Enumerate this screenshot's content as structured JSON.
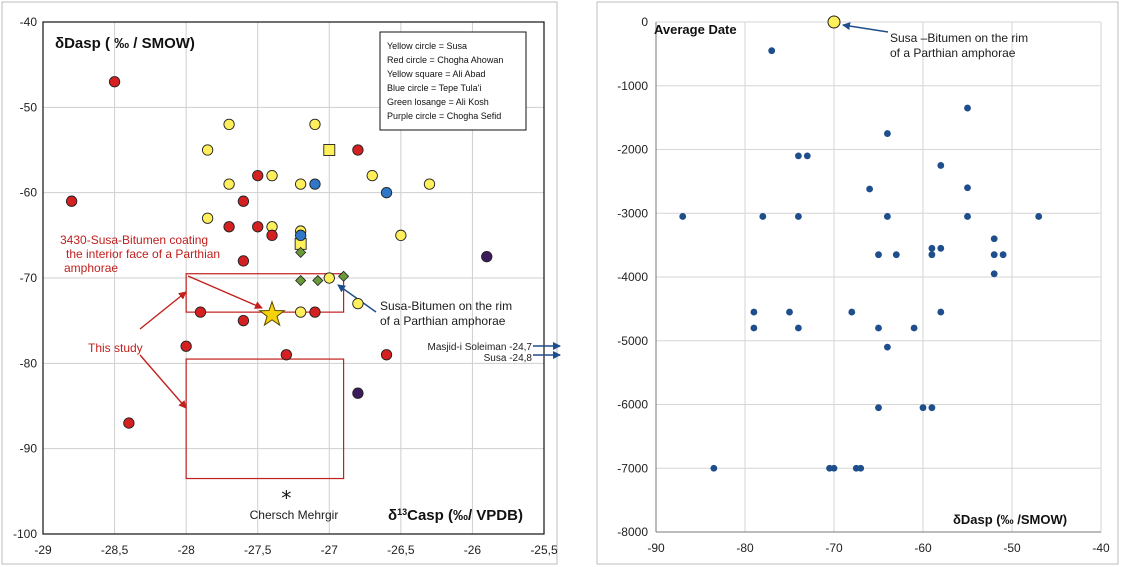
{
  "chart_data": [
    {
      "type": "scatter",
      "title": "δDasp ( ‰ / SMOW)",
      "xlabel": "δ13Casp (‰/ VPDB)",
      "ylabel": "",
      "xlim": [
        -29,
        -25.5
      ],
      "ylim": [
        -100,
        -40
      ],
      "xticks": [
        -29,
        -28.5,
        -28,
        -27.5,
        -27,
        -26.5,
        -26,
        -25.5
      ],
      "xtick_labels": [
        "-29",
        "-28,5",
        "-28",
        "-27,5",
        "-27",
        "-26,5",
        "-26",
        "-25,5"
      ],
      "yticks": [
        -100,
        -90,
        -80,
        -70,
        -60,
        -50,
        -40
      ],
      "grid": true,
      "legend": {
        "placement": "top-right",
        "entries": [
          "Yellow circle = Susa",
          "Red circle = Chogha Ahowan",
          "Yellow square = Ali Abad",
          "Blue circle = Tepe Tula'i",
          "Green losange = Ali Kosh",
          "Purple circle = Chogha Sefid"
        ]
      },
      "series": [
        {
          "key": "susa",
          "shape": "circle",
          "color": "#ffef5a",
          "points": [
            [
              -27.7,
              -52
            ],
            [
              -27.85,
              -55
            ],
            [
              -27.7,
              -59
            ],
            [
              -27.4,
              -58
            ],
            [
              -27.2,
              -59
            ],
            [
              -27.1,
              -52
            ],
            [
              -26.7,
              -58
            ],
            [
              -26.3,
              -59
            ],
            [
              -27.85,
              -63
            ],
            [
              -27.4,
              -64
            ],
            [
              -27.2,
              -64.5
            ],
            [
              -26.5,
              -65
            ],
            [
              -27,
              -70
            ],
            [
              -26.8,
              -73
            ],
            [
              -27.2,
              -74
            ]
          ]
        },
        {
          "key": "chogha_ahowan",
          "shape": "circle",
          "color": "#d42020",
          "points": [
            [
              -28.5,
              -47
            ],
            [
              -28.8,
              -61
            ],
            [
              -27.5,
              -58
            ],
            [
              -26.8,
              -55
            ],
            [
              -27.6,
              -61
            ],
            [
              -27.7,
              -64
            ],
            [
              -27.5,
              -64
            ],
            [
              -27.4,
              -65
            ],
            [
              -27.6,
              -68
            ],
            [
              -27.9,
              -74
            ],
            [
              -27.6,
              -75
            ],
            [
              -27.1,
              -74
            ],
            [
              -28,
              -78
            ],
            [
              -27.3,
              -79
            ],
            [
              -26.6,
              -79
            ],
            [
              -28.4,
              -87
            ]
          ]
        },
        {
          "key": "ali_abad",
          "shape": "square",
          "color": "#ffef5a",
          "points": [
            [
              -27,
              -55
            ],
            [
              -27.2,
              -66
            ]
          ]
        },
        {
          "key": "tepe_tulai",
          "shape": "circle",
          "color": "#2f77c7",
          "points": [
            [
              -27.1,
              -59
            ],
            [
              -26.6,
              -60
            ],
            [
              -27.2,
              -65
            ]
          ]
        },
        {
          "key": "ali_kosh",
          "shape": "diamond",
          "color": "#6a9a3a",
          "points": [
            [
              -27.2,
              -67
            ],
            [
              -27.2,
              -70.3
            ],
            [
              -27.08,
              -70.3
            ],
            [
              -26.9,
              -69.8
            ]
          ]
        },
        {
          "key": "chogha_sefid",
          "shape": "circle",
          "color": "#3c1c5c",
          "points": [
            [
              -25.9,
              -67.5
            ],
            [
              -26.8,
              -83.5
            ]
          ]
        },
        {
          "key": "this_study",
          "shape": "star",
          "color": "#f5d20a",
          "points": [
            [
              -27.4,
              -74.3
            ]
          ]
        }
      ],
      "annotations": [
        {
          "text": "3430-Susa-Bitumen coating",
          "color": "#c0201e"
        },
        {
          "text": "the interior face of a Parthian",
          "color": "#c0201e"
        },
        {
          "text": "amphorae",
          "color": "#c0201e"
        },
        {
          "text": "This study",
          "color": "#c0201e"
        },
        {
          "text": "Susa-Bitumen on the rim",
          "color": "#1c1c1c"
        },
        {
          "text": "of a Parthian amphorae",
          "color": "#1c1c1c"
        },
        {
          "text": "Masjid-i Soleiman -24,7",
          "color": "#1c1c1c"
        },
        {
          "text": "Susa -24,8",
          "color": "#1c1c1c"
        },
        {
          "text": "Chersch Mehrgir",
          "color": "#1c1c1c"
        }
      ],
      "marker_symbol": "⁎",
      "boxes": [
        {
          "x": [
            -28,
            -26.9
          ],
          "y": [
            -74,
            -69.5
          ]
        },
        {
          "x": [
            -28,
            -26.9
          ],
          "y": [
            -93.5,
            -79.5
          ]
        }
      ],
      "chersch_mehrgir": [
        -27.3,
        -95
      ]
    },
    {
      "type": "scatter",
      "title": "Average Date",
      "xlabel": "δDasp (‰ /SMOW)",
      "ylabel": "",
      "xlim": [
        -90,
        -40
      ],
      "ylim": [
        -8000,
        0
      ],
      "xticks": [
        -90,
        -80,
        -70,
        -60,
        -50,
        -40
      ],
      "yticks": [
        -8000,
        -7000,
        -6000,
        -5000,
        -4000,
        -3000,
        -2000,
        -1000,
        0
      ],
      "grid": true,
      "series": [
        {
          "key": "samples",
          "shape": "circle",
          "color": "#1f4e8c",
          "points": [
            [
              -77,
              -450
            ],
            [
              -55,
              -1350
            ],
            [
              -64,
              -1750
            ],
            [
              -74,
              -2100
            ],
            [
              -73,
              -2100
            ],
            [
              -58,
              -2250
            ],
            [
              -66,
              -2620
            ],
            [
              -55,
              -2600
            ],
            [
              -87,
              -3050
            ],
            [
              -78,
              -3050
            ],
            [
              -74,
              -3050
            ],
            [
              -64,
              -3050
            ],
            [
              -55,
              -3050
            ],
            [
              -47,
              -3050
            ],
            [
              -52,
              -3400
            ],
            [
              -59,
              -3550
            ],
            [
              -58,
              -3550
            ],
            [
              -65,
              -3650
            ],
            [
              -63,
              -3650
            ],
            [
              -59,
              -3650
            ],
            [
              -52,
              -3650
            ],
            [
              -51,
              -3650
            ],
            [
              -52,
              -3950
            ],
            [
              -79,
              -4550
            ],
            [
              -75,
              -4550
            ],
            [
              -68,
              -4550
            ],
            [
              -58,
              -4550
            ],
            [
              -79,
              -4800
            ],
            [
              -74,
              -4800
            ],
            [
              -65,
              -4800
            ],
            [
              -61,
              -4800
            ],
            [
              -64,
              -5100
            ],
            [
              -65,
              -6050
            ],
            [
              -60,
              -6050
            ],
            [
              -59,
              -6050
            ],
            [
              -83.5,
              -7000
            ],
            [
              -70.5,
              -7000
            ],
            [
              -70,
              -7000
            ],
            [
              -67.5,
              -7000
            ],
            [
              -67,
              -7000
            ]
          ]
        },
        {
          "key": "susa_rim",
          "shape": "circle",
          "color": "#ffef5a",
          "points": [
            [
              -70,
              0
            ]
          ]
        }
      ],
      "annotations": [
        {
          "text": "Susa –Bitumen on the rim",
          "color": "#1c1c1c"
        },
        {
          "text": "of a Parthian amphorae",
          "color": "#1c1c1c"
        }
      ]
    }
  ]
}
